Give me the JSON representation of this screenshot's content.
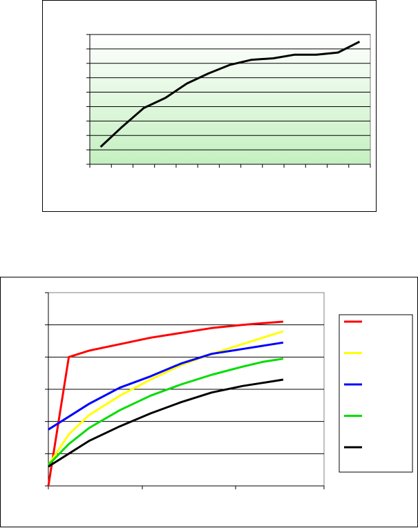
{
  "chart_data": [
    {
      "type": "line",
      "background": "gradient-green",
      "grid": true,
      "legend": "none",
      "ylim": [
        0,
        9
      ],
      "x": [
        1,
        2,
        3,
        4,
        5,
        6,
        7,
        8,
        9,
        10,
        11,
        12,
        13
      ],
      "series": [
        {
          "color": "#000000",
          "values": [
            1.2,
            2.6,
            3.9,
            4.6,
            5.6,
            6.3,
            6.9,
            7.25,
            7.35,
            7.6,
            7.6,
            7.75,
            8.5
          ]
        }
      ]
    },
    {
      "type": "line",
      "grid": true,
      "legend": "right",
      "ylim": [
        0,
        6
      ],
      "xlim": [
        0,
        270
      ],
      "x_tick_count": 3,
      "series": [
        {
          "color": "#ff0000",
          "x": [
            0,
            20,
            40,
            70,
            100,
            130,
            160,
            190,
            210,
            230
          ],
          "values": [
            -0.1,
            4.0,
            4.2,
            4.4,
            4.6,
            4.75,
            4.9,
            5.0,
            5.05,
            5.1
          ]
        },
        {
          "color": "#ffff00",
          "x": [
            0,
            20,
            40,
            70,
            100,
            130,
            160,
            190,
            210,
            230
          ],
          "values": [
            0.65,
            1.6,
            2.2,
            2.8,
            3.3,
            3.75,
            4.1,
            4.4,
            4.6,
            4.8
          ]
        },
        {
          "color": "#0000ff",
          "x": [
            0,
            20,
            40,
            70,
            100,
            130,
            160,
            190,
            210,
            230
          ],
          "values": [
            1.75,
            2.15,
            2.55,
            3.05,
            3.4,
            3.8,
            4.1,
            4.25,
            4.35,
            4.45
          ]
        },
        {
          "color": "#00dd00",
          "x": [
            0,
            20,
            40,
            70,
            100,
            130,
            160,
            190,
            210,
            230
          ],
          "values": [
            0.65,
            1.3,
            1.8,
            2.35,
            2.8,
            3.15,
            3.45,
            3.7,
            3.85,
            3.95
          ]
        },
        {
          "color": "#000000",
          "x": [
            0,
            20,
            40,
            70,
            100,
            130,
            160,
            190,
            210,
            230
          ],
          "values": [
            0.6,
            1.0,
            1.4,
            1.85,
            2.25,
            2.6,
            2.9,
            3.1,
            3.2,
            3.3
          ]
        }
      ]
    }
  ]
}
